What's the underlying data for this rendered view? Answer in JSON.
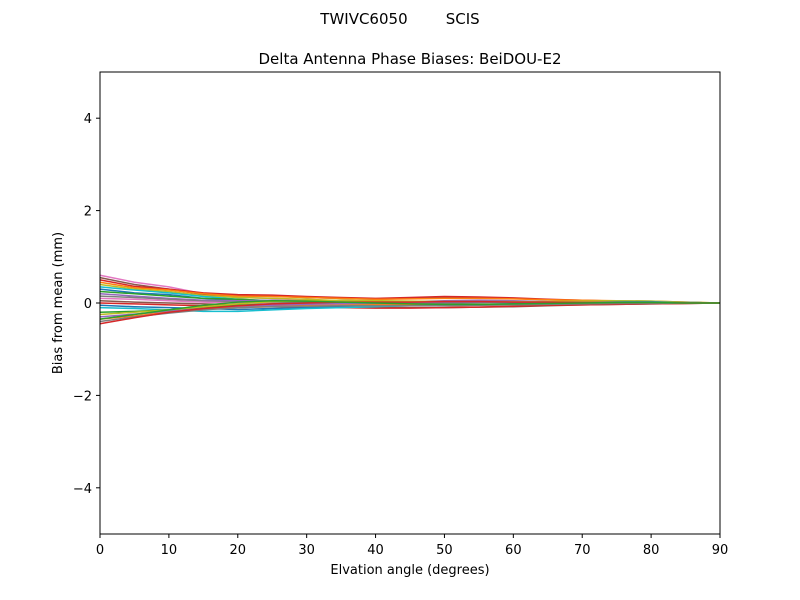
{
  "figure": {
    "suptitle": "TWIVC6050        SCIS"
  },
  "chart_data": {
    "type": "line",
    "title": "Delta Antenna Phase Biases: BeiDOU-E2",
    "xlabel": "Elvation angle (degrees)",
    "ylabel": "Bias from mean (mm)",
    "xlim": [
      0,
      90
    ],
    "ylim": [
      -5,
      5
    ],
    "xticks": [
      0,
      10,
      20,
      30,
      40,
      50,
      60,
      70,
      80,
      90
    ],
    "xtick_labels": [
      "0",
      "10",
      "20",
      "30",
      "40",
      "50",
      "60",
      "70",
      "80",
      "90"
    ],
    "yticks": [
      4,
      2,
      0,
      -2,
      -4
    ],
    "ytick_labels": [
      "4",
      "2",
      "0",
      "−2",
      "−4"
    ],
    "grid": false,
    "legend": "none",
    "x": [
      0,
      5,
      10,
      15,
      20,
      25,
      30,
      35,
      40,
      45,
      50,
      55,
      60,
      65,
      70,
      75,
      80,
      85,
      90
    ],
    "series": [
      {
        "color": "#e377c2",
        "values": [
          0.6,
          0.45,
          0.35,
          0.2,
          0.12,
          0.1,
          0.06,
          0.02,
          -0.01,
          -0.04,
          -0.05,
          -0.05,
          -0.04,
          -0.03,
          -0.02,
          -0.01,
          -0.01,
          0.0,
          0.0
        ]
      },
      {
        "color": "#8c564b",
        "values": [
          0.55,
          0.4,
          0.3,
          0.18,
          0.16,
          0.15,
          0.12,
          0.1,
          0.08,
          0.1,
          0.12,
          0.12,
          0.1,
          0.07,
          0.05,
          0.03,
          0.02,
          0.01,
          0.0
        ]
      },
      {
        "color": "#d62728",
        "values": [
          0.5,
          0.36,
          0.3,
          0.22,
          0.18,
          0.17,
          0.14,
          0.12,
          0.1,
          0.12,
          0.14,
          0.13,
          0.11,
          0.08,
          0.06,
          0.04,
          0.03,
          0.01,
          0.0
        ]
      },
      {
        "color": "#ff7f0e",
        "values": [
          0.45,
          0.33,
          0.28,
          0.2,
          0.15,
          0.14,
          0.12,
          0.1,
          0.08,
          0.09,
          0.1,
          0.1,
          0.09,
          0.07,
          0.06,
          0.05,
          0.04,
          0.02,
          0.0
        ]
      },
      {
        "color": "#bcbd22",
        "values": [
          0.4,
          0.3,
          0.25,
          0.16,
          0.12,
          0.1,
          0.08,
          0.05,
          0.03,
          0.02,
          0.01,
          0.01,
          0.02,
          0.03,
          0.04,
          0.05,
          0.04,
          0.02,
          0.0
        ]
      },
      {
        "color": "#17becf",
        "values": [
          0.35,
          0.28,
          0.22,
          0.14,
          0.08,
          0.05,
          0.02,
          0.0,
          -0.02,
          -0.03,
          -0.04,
          -0.03,
          -0.02,
          0.0,
          0.02,
          0.03,
          0.03,
          0.01,
          0.0
        ]
      },
      {
        "color": "#1f77b4",
        "values": [
          0.3,
          0.22,
          0.18,
          0.1,
          0.05,
          0.02,
          0.0,
          -0.02,
          -0.03,
          -0.04,
          -0.05,
          -0.04,
          -0.03,
          -0.01,
          0.01,
          0.02,
          0.02,
          0.01,
          0.0
        ]
      },
      {
        "color": "#2ca02c",
        "values": [
          0.25,
          0.2,
          0.15,
          0.1,
          0.08,
          0.05,
          0.03,
          0.01,
          -0.01,
          -0.02,
          -0.03,
          -0.03,
          -0.02,
          -0.01,
          0.01,
          0.02,
          0.02,
          0.01,
          0.0
        ]
      },
      {
        "color": "#9467bd",
        "values": [
          0.2,
          0.15,
          0.1,
          0.06,
          0.05,
          0.06,
          0.04,
          0.02,
          0.01,
          0.03,
          0.05,
          0.06,
          0.05,
          0.03,
          0.02,
          0.02,
          0.01,
          0.01,
          0.0
        ]
      },
      {
        "color": "#7f7f7f",
        "values": [
          0.15,
          0.12,
          0.08,
          0.04,
          0.02,
          0.01,
          0.0,
          -0.01,
          -0.02,
          -0.01,
          0.0,
          0.01,
          0.01,
          0.01,
          0.01,
          0.01,
          0.01,
          0.0,
          0.0
        ]
      },
      {
        "color": "#e377c2",
        "values": [
          0.1,
          0.08,
          0.05,
          0.02,
          0.0,
          -0.01,
          -0.02,
          -0.04,
          -0.05,
          -0.06,
          -0.06,
          -0.05,
          -0.04,
          -0.03,
          -0.02,
          -0.01,
          -0.01,
          0.0,
          0.0
        ]
      },
      {
        "color": "#8c564b",
        "values": [
          0.05,
          0.02,
          0.0,
          -0.02,
          -0.04,
          -0.05,
          -0.06,
          -0.08,
          -0.09,
          -0.1,
          -0.1,
          -0.09,
          -0.08,
          -0.06,
          -0.04,
          -0.03,
          -0.02,
          -0.01,
          0.0
        ]
      },
      {
        "color": "#d62728",
        "values": [
          0.0,
          -0.02,
          -0.04,
          -0.06,
          -0.07,
          -0.08,
          -0.09,
          -0.1,
          -0.11,
          -0.11,
          -0.1,
          -0.09,
          -0.07,
          -0.05,
          -0.04,
          -0.03,
          -0.02,
          -0.01,
          0.0
        ]
      },
      {
        "color": "#1f77b4",
        "values": [
          -0.05,
          -0.08,
          -0.1,
          -0.12,
          -0.14,
          -0.12,
          -0.1,
          -0.08,
          -0.06,
          -0.05,
          -0.04,
          -0.03,
          -0.02,
          -0.01,
          0.0,
          0.0,
          0.0,
          0.0,
          0.0
        ]
      },
      {
        "color": "#17becf",
        "values": [
          -0.1,
          -0.12,
          -0.15,
          -0.18,
          -0.18,
          -0.15,
          -0.12,
          -0.1,
          -0.08,
          -0.06,
          -0.05,
          -0.04,
          -0.03,
          -0.02,
          -0.01,
          0.0,
          0.0,
          0.0,
          0.0
        ]
      },
      {
        "color": "#2ca02c",
        "values": [
          -0.2,
          -0.18,
          -0.15,
          -0.1,
          -0.05,
          -0.02,
          0.0,
          0.01,
          0.02,
          0.02,
          0.02,
          0.02,
          0.02,
          0.02,
          0.02,
          0.01,
          0.01,
          0.0,
          0.0
        ]
      },
      {
        "color": "#bcbd22",
        "values": [
          -0.25,
          -0.2,
          -0.15,
          -0.08,
          -0.02,
          0.03,
          0.05,
          0.06,
          0.05,
          0.04,
          0.03,
          0.03,
          0.03,
          0.03,
          0.03,
          0.02,
          0.01,
          0.01,
          0.0
        ]
      },
      {
        "color": "#9467bd",
        "values": [
          -0.3,
          -0.24,
          -0.18,
          -0.12,
          -0.08,
          -0.05,
          -0.03,
          -0.01,
          0.0,
          0.01,
          0.02,
          0.02,
          0.02,
          0.02,
          0.01,
          0.01,
          0.01,
          0.0,
          0.0
        ]
      },
      {
        "color": "#ff7f0e",
        "values": [
          -0.35,
          -0.28,
          -0.2,
          -0.14,
          -0.1,
          -0.08,
          -0.06,
          -0.05,
          -0.04,
          -0.05,
          -0.06,
          -0.05,
          -0.04,
          -0.02,
          -0.01,
          0.0,
          0.0,
          0.0,
          0.0
        ]
      },
      {
        "color": "#7f7f7f",
        "values": [
          -0.4,
          -0.3,
          -0.22,
          -0.15,
          -0.1,
          -0.08,
          -0.07,
          -0.06,
          -0.06,
          -0.06,
          -0.06,
          -0.05,
          -0.04,
          -0.03,
          -0.02,
          -0.01,
          -0.01,
          0.0,
          0.0
        ]
      },
      {
        "color": "#d62728",
        "values": [
          -0.45,
          -0.32,
          -0.2,
          -0.12,
          -0.06,
          -0.02,
          0.0,
          0.02,
          0.02,
          0.02,
          0.03,
          0.03,
          0.02,
          0.02,
          0.01,
          0.01,
          0.01,
          0.0,
          0.0
        ]
      },
      {
        "color": "#2ca02c",
        "values": [
          -0.35,
          -0.25,
          -0.15,
          -0.05,
          0.02,
          0.05,
          0.04,
          0.02,
          0.0,
          -0.02,
          -0.03,
          -0.03,
          -0.02,
          -0.01,
          0.0,
          0.01,
          0.01,
          0.0,
          0.0
        ]
      }
    ]
  }
}
